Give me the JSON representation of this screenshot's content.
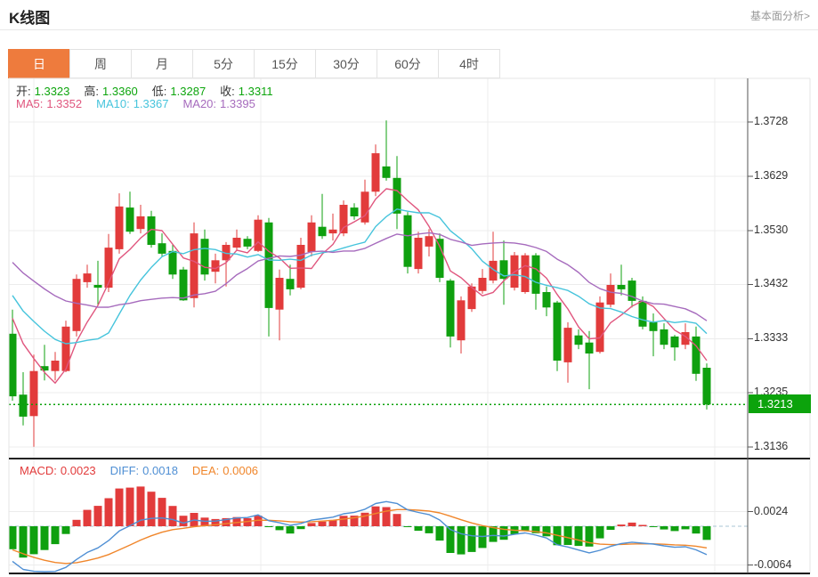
{
  "header": {
    "title": "K线图",
    "link": "基本面分析>"
  },
  "tabs": {
    "items": [
      "日",
      "周",
      "月",
      "5分",
      "15分",
      "30分",
      "60分",
      "4时"
    ],
    "active_index": 0
  },
  "readouts": {
    "ohlc": [
      {
        "label": "开:",
        "value": "1.3323"
      },
      {
        "label": "高:",
        "value": "1.3360"
      },
      {
        "label": "低:",
        "value": "1.3287"
      },
      {
        "label": "收:",
        "value": "1.3311"
      }
    ],
    "ma": [
      {
        "label": "MA5:",
        "value": "1.3352",
        "key": "ma5"
      },
      {
        "label": "MA10:",
        "value": "1.3367",
        "key": "ma10"
      },
      {
        "label": "MA20:",
        "value": "1.3395",
        "key": "ma20"
      }
    ],
    "macd": [
      {
        "label": "MACD:",
        "value": "0.0023",
        "key": "up"
      },
      {
        "label": "DIFF:",
        "value": "0.0018",
        "key": "diff"
      },
      {
        "label": "DEA:",
        "value": "0.0006",
        "key": "dea"
      }
    ]
  },
  "colors": {
    "up": "#e23b3b",
    "down": "#0fa00f",
    "ma5": "#e0567e",
    "ma10": "#46c4dc",
    "ma20": "#a66bbd",
    "diff": "#4f8fd4",
    "dea": "#f0862b",
    "label": "#333333",
    "value_green": "#0da50d",
    "tab_active_bg": "#ee7b3d",
    "current_price_bg": "#0ca30c",
    "grid": "#ececec",
    "zero_dash": "#a8c4d4",
    "current_line": "#0aa10a"
  },
  "chart_data": {
    "type": "candlestick",
    "title": "K线图 (GBP/USD daily K-line with MA5/MA10/MA20 and MACD)",
    "legend_position": "top-left",
    "grid": true,
    "price_axis_ticks": [
      1.3728,
      1.3629,
      1.353,
      1.3432,
      1.3333,
      1.3235,
      1.3136
    ],
    "macd_axis_ticks": [
      0.0024,
      -0.0064
    ],
    "current_price": 1.3213,
    "current_price_label": "1.3213",
    "series_legend": [
      "MA5",
      "MA10",
      "MA20",
      "DIFF",
      "DEA",
      "MACD histogram"
    ],
    "indicator_seed": {
      "start": 1.358,
      "end": 1.339,
      "count": 19
    },
    "candles_format": [
      "open",
      "high",
      "low",
      "close"
    ],
    "candles": [
      [
        1.3342,
        1.3386,
        1.322,
        1.3228
      ],
      [
        1.3231,
        1.3272,
        1.3175,
        1.3191
      ],
      [
        1.3192,
        1.3304,
        1.3136,
        1.3274
      ],
      [
        1.3283,
        1.3322,
        1.3257,
        1.3275
      ],
      [
        1.3274,
        1.3309,
        1.3257,
        1.3293
      ],
      [
        1.3274,
        1.3366,
        1.3272,
        1.3355
      ],
      [
        1.3347,
        1.345,
        1.3337,
        1.3442
      ],
      [
        1.3436,
        1.3468,
        1.3426,
        1.3452
      ],
      [
        1.3431,
        1.3475,
        1.3395,
        1.3426
      ],
      [
        1.3426,
        1.3524,
        1.3418,
        1.3499
      ],
      [
        1.3496,
        1.3598,
        1.3488,
        1.3574
      ],
      [
        1.3572,
        1.3601,
        1.3524,
        1.3528
      ],
      [
        1.3533,
        1.3577,
        1.3525,
        1.3556
      ],
      [
        1.3556,
        1.3566,
        1.3499,
        1.3504
      ],
      [
        1.3507,
        1.3525,
        1.3483,
        1.3488
      ],
      [
        1.3493,
        1.3504,
        1.3442,
        1.345
      ],
      [
        1.3459,
        1.3464,
        1.3402,
        1.3403
      ],
      [
        1.3407,
        1.3545,
        1.339,
        1.3525
      ],
      [
        1.3515,
        1.3532,
        1.3439,
        1.345
      ],
      [
        1.3455,
        1.3488,
        1.3434,
        1.3476
      ],
      [
        1.3476,
        1.3509,
        1.3428,
        1.3504
      ],
      [
        1.3499,
        1.3532,
        1.3493,
        1.3517
      ],
      [
        1.3515,
        1.352,
        1.3496,
        1.3501
      ],
      [
        1.3493,
        1.3558,
        1.3491,
        1.355
      ],
      [
        1.3545,
        1.3553,
        1.3337,
        1.3389
      ],
      [
        1.3386,
        1.3459,
        1.333,
        1.3444
      ],
      [
        1.3442,
        1.3468,
        1.3412,
        1.3423
      ],
      [
        1.3426,
        1.3517,
        1.3423,
        1.3504
      ],
      [
        1.3491,
        1.3558,
        1.3483,
        1.3545
      ],
      [
        1.3537,
        1.3597,
        1.3515,
        1.352
      ],
      [
        1.3525,
        1.3561,
        1.3512,
        1.3532
      ],
      [
        1.3525,
        1.3585,
        1.352,
        1.3577
      ],
      [
        1.3572,
        1.358,
        1.355,
        1.3556
      ],
      [
        1.3545,
        1.3623,
        1.3541,
        1.3601
      ],
      [
        1.3601,
        1.3687,
        1.3593,
        1.3671
      ],
      [
        1.3647,
        1.3731,
        1.3621,
        1.3626
      ],
      [
        1.3626,
        1.3666,
        1.3533,
        1.3561
      ],
      [
        1.3558,
        1.3564,
        1.3452,
        1.3464
      ],
      [
        1.346,
        1.3528,
        1.3452,
        1.3517
      ],
      [
        1.3501,
        1.3533,
        1.3483,
        1.352
      ],
      [
        1.3515,
        1.3525,
        1.3436,
        1.3444
      ],
      [
        1.3439,
        1.3442,
        1.3317,
        1.3337
      ],
      [
        1.333,
        1.341,
        1.3306,
        1.3403
      ],
      [
        1.3387,
        1.3434,
        1.3382,
        1.3428
      ],
      [
        1.342,
        1.346,
        1.3415,
        1.3444
      ],
      [
        1.3439,
        1.3528,
        1.3434,
        1.3475
      ],
      [
        1.3476,
        1.3512,
        1.3395,
        1.3442
      ],
      [
        1.3426,
        1.3491,
        1.3421,
        1.3485
      ],
      [
        1.3418,
        1.3489,
        1.3415,
        1.3485
      ],
      [
        1.3485,
        1.3489,
        1.3386,
        1.3415
      ],
      [
        1.3418,
        1.3428,
        1.3374,
        1.339
      ],
      [
        1.3399,
        1.3402,
        1.3274,
        1.3293
      ],
      [
        1.329,
        1.3363,
        1.3253,
        1.3353
      ],
      [
        1.3339,
        1.335,
        1.3314,
        1.3322
      ],
      [
        1.3326,
        1.3347,
        1.3241,
        1.3306
      ],
      [
        1.3309,
        1.341,
        1.3306,
        1.3399
      ],
      [
        1.3395,
        1.3452,
        1.339,
        1.3431
      ],
      [
        1.3431,
        1.3468,
        1.3412,
        1.3423
      ],
      [
        1.3439,
        1.3444,
        1.339,
        1.3402
      ],
      [
        1.3402,
        1.341,
        1.335,
        1.3355
      ],
      [
        1.3363,
        1.3379,
        1.3301,
        1.3347
      ],
      [
        1.335,
        1.3361,
        1.3314,
        1.3322
      ],
      [
        1.3337,
        1.334,
        1.3293,
        1.3317
      ],
      [
        1.3322,
        1.3361,
        1.3314,
        1.3345
      ],
      [
        1.3337,
        1.3355,
        1.3256,
        1.3269
      ],
      [
        1.328,
        1.3288,
        1.3204,
        1.3213
      ]
    ]
  }
}
